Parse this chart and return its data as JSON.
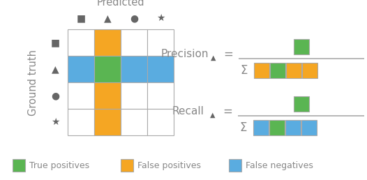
{
  "green": "#5ab552",
  "orange": "#f5a623",
  "blue": "#5aace0",
  "text_color": "#888888",
  "dark_gray": "#666666",
  "grid_color": "#aaaaaa",
  "title": "Predicted",
  "ylabel": "Ground truth",
  "legend_items": [
    "True positives",
    "False positives",
    "False negatives"
  ],
  "col_symbols": [
    "■",
    "▲",
    "●",
    "★"
  ],
  "row_symbols": [
    "■",
    "▲",
    "●",
    "★"
  ],
  "precision_label": "Precision",
  "recall_label": "Recall",
  "precision_denom_colors": [
    "orange",
    "green",
    "orange",
    "orange"
  ],
  "recall_denom_colors": [
    "blue",
    "green",
    "blue",
    "blue"
  ]
}
